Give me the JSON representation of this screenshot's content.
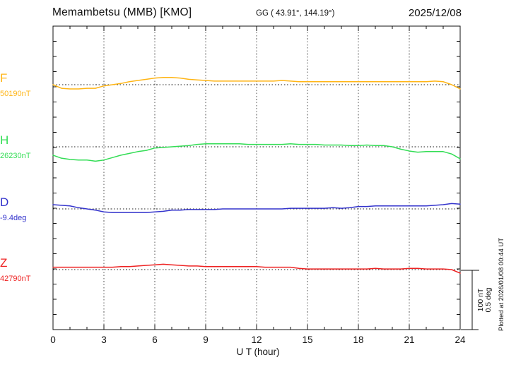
{
  "chart_data": {
    "type": "line",
    "title": "Memambetsu (MMB)  [KMO]",
    "station_coords": "GG ( 43.91°, 144.19°)",
    "date": "2025/12/08",
    "xlabel": "U T (hour)",
    "xlim": [
      0,
      24
    ],
    "xticks": [
      "0",
      "3",
      "6",
      "9",
      "12",
      "15",
      "18",
      "21",
      "24"
    ],
    "x_step_hours": 0.5,
    "grid": "dotted vertical lines every 3 hours; dotted horizontal baseline per channel",
    "scale_bar": {
      "nT_label": "100 nT",
      "deg_label": "0.5 deg",
      "nT_per_bar": 100,
      "deg_per_bar": 0.5
    },
    "series": [
      {
        "name": "F",
        "unit": "nT",
        "base_value": 50190,
        "value_label": "50190nT",
        "color": "#FFB515",
        "delta": [
          0,
          -6,
          -7,
          -7,
          -6,
          -6,
          -2,
          0,
          2,
          5,
          7,
          9,
          11,
          12,
          12,
          11,
          9,
          8,
          7,
          6,
          6,
          6,
          6,
          6,
          6,
          6,
          6,
          7,
          6,
          5,
          5,
          5,
          5,
          5,
          5,
          5,
          5,
          5,
          5,
          5,
          5,
          5,
          5,
          5,
          5,
          6,
          5,
          0,
          -7
        ]
      },
      {
        "name": "H",
        "unit": "nT",
        "base_value": 26230,
        "value_label": "26230nT",
        "color": "#33DD55",
        "delta": [
          -14,
          -19,
          -21,
          -22,
          -22,
          -24,
          -22,
          -18,
          -14,
          -11,
          -8,
          -6,
          -2,
          -1,
          0,
          1,
          2,
          4,
          5,
          5,
          5,
          5,
          5,
          4,
          4,
          4,
          4,
          4,
          5,
          4,
          4,
          4,
          3,
          3,
          3,
          2,
          2,
          3,
          2,
          2,
          0,
          -4,
          -7,
          -9,
          -8,
          -8,
          -8,
          -12,
          -20
        ]
      },
      {
        "name": "D",
        "unit": "deg",
        "base_value": -9.4,
        "value_label": "-9.4deg",
        "color": "#3333CC",
        "delta": [
          0.035,
          0.03,
          0.025,
          0.01,
          0,
          -0.01,
          -0.025,
          -0.03,
          -0.03,
          -0.03,
          -0.03,
          -0.03,
          -0.025,
          -0.02,
          -0.01,
          -0.01,
          -0.005,
          -0.005,
          -0.005,
          -0.005,
          0,
          0,
          0,
          0,
          0,
          0,
          0,
          0,
          0.005,
          0.005,
          0.005,
          0.005,
          0.005,
          0.01,
          0.005,
          0.01,
          0.02,
          0.02,
          0.025,
          0.025,
          0.025,
          0.025,
          0.025,
          0.025,
          0.025,
          0.03,
          0.035,
          0.045,
          0.04
        ]
      },
      {
        "name": "Z",
        "unit": "nT",
        "base_value": 42790,
        "value_label": "42790nT",
        "color": "#EE2222",
        "delta": [
          4,
          4,
          4,
          4,
          4,
          4,
          4,
          4,
          5,
          5,
          6,
          7,
          8,
          9,
          8,
          7,
          6,
          6,
          5,
          5,
          5,
          5,
          5,
          5,
          5,
          4,
          4,
          4,
          4,
          2,
          1,
          1,
          1,
          1,
          1,
          1,
          1,
          1,
          2,
          1,
          1,
          1,
          2,
          2,
          1,
          1,
          1,
          0,
          -6
        ]
      }
    ]
  },
  "footer": {
    "plotted_at": "Plotted at 2026/01/08 00:44 UT"
  }
}
